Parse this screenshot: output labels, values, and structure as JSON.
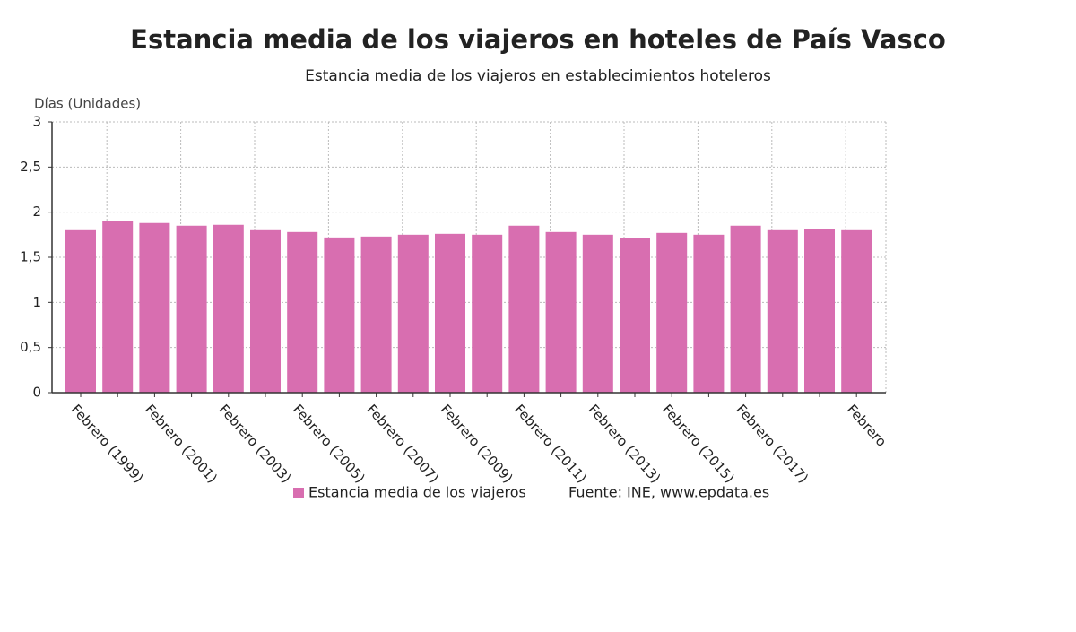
{
  "chart_data": {
    "type": "bar",
    "title": "Estancia media de los viajeros en hoteles de País Vasco",
    "subtitle": "Estancia media de los viajeros en establecimientos hoteleros",
    "y_label": "Días (Unidades)",
    "source": "Fuente: INE, www.epdata.es",
    "categories": [
      "Febrero (1999)",
      null,
      "Febrero (2001)",
      null,
      "Febrero (2003)",
      null,
      "Febrero (2005)",
      null,
      "Febrero (2007)",
      null,
      "Febrero (2009)",
      null,
      "Febrero (2011)",
      null,
      "Febrero (2013)",
      null,
      "Febrero (2015)",
      null,
      "Febrero (2017)",
      null,
      null,
      "Febrero"
    ],
    "series": [
      {
        "name": "Estancia media de los viajeros",
        "color": "#d86eb0",
        "values": [
          1.8,
          1.9,
          1.88,
          1.85,
          1.86,
          1.8,
          1.78,
          1.72,
          1.73,
          1.75,
          1.76,
          1.75,
          1.85,
          1.78,
          1.75,
          1.71,
          1.77,
          1.75,
          1.85,
          1.8,
          1.81,
          1.8
        ]
      }
    ],
    "ylim": [
      0,
      3
    ],
    "yticks": [
      0,
      {
        "value": 0.5,
        "label": "0,5"
      },
      1,
      {
        "value": 1.5,
        "label": "1,5"
      },
      2,
      {
        "value": 2.5,
        "label": "2,5"
      },
      3
    ],
    "grid": true
  }
}
